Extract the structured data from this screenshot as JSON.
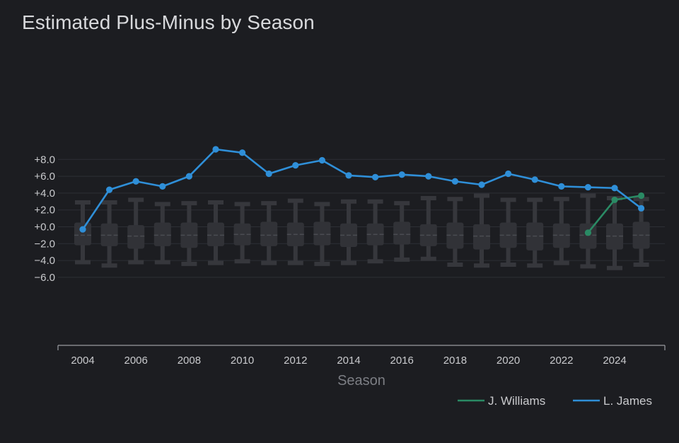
{
  "chart_data": {
    "type": "line",
    "title": "Estimated Plus-Minus by Season",
    "xlabel": "Season",
    "ylabel": "",
    "ylim": [
      -7,
      10
    ],
    "y_ticks": [
      8,
      6,
      4,
      2,
      0,
      -2,
      -4,
      -6
    ],
    "y_tick_labels": [
      "+8.0",
      "+6.0",
      "+4.0",
      "+2.0",
      "+0.0",
      "−2.0",
      "−4.0",
      "−6.0"
    ],
    "x_ticks": [
      2004,
      2006,
      2008,
      2010,
      2012,
      2014,
      2016,
      2018,
      2020,
      2022,
      2024
    ],
    "x_tick_labels": [
      "2004",
      "2006",
      "2008",
      "2010",
      "2012",
      "2014",
      "2016",
      "2018",
      "2020",
      "2022",
      "2024"
    ],
    "grid": true,
    "legend_position": "bottom-right",
    "series": [
      {
        "name": "J. Williams",
        "color": "#2a8a64",
        "x": [
          2023,
          2024,
          2025
        ],
        "y": [
          -0.7,
          3.2,
          3.7
        ]
      },
      {
        "name": "L. James",
        "color": "#2f8fd8",
        "x": [
          2004,
          2005,
          2006,
          2007,
          2008,
          2009,
          2010,
          2011,
          2012,
          2013,
          2014,
          2015,
          2016,
          2017,
          2018,
          2019,
          2020,
          2021,
          2022,
          2023,
          2024,
          2025
        ],
        "y": [
          -0.3,
          4.4,
          5.4,
          4.8,
          6.0,
          9.2,
          8.8,
          6.3,
          7.3,
          7.9,
          6.1,
          5.9,
          6.2,
          6.0,
          5.4,
          5.0,
          6.3,
          5.6,
          4.8,
          4.7,
          4.6,
          2.2
        ]
      }
    ],
    "distribution_boxes": {
      "x": [
        2004,
        2005,
        2006,
        2007,
        2008,
        2009,
        2010,
        2011,
        2012,
        2013,
        2014,
        2015,
        2016,
        2017,
        2018,
        2019,
        2020,
        2021,
        2022,
        2023,
        2024,
        2025
      ],
      "whisker_high": [
        2.9,
        2.9,
        3.2,
        2.7,
        2.8,
        2.9,
        2.7,
        2.8,
        3.1,
        2.7,
        3.0,
        3.0,
        2.8,
        3.4,
        3.3,
        3.7,
        3.2,
        3.2,
        3.3,
        3.7,
        3.4,
        3.3
      ],
      "q3": [
        0.5,
        0.4,
        0.2,
        0.5,
        0.5,
        0.5,
        0.4,
        0.6,
        0.5,
        0.6,
        0.4,
        0.4,
        0.6,
        0.3,
        0.5,
        0.3,
        0.5,
        0.5,
        0.4,
        0.4,
        0.4,
        0.6
      ],
      "median": [
        -1.0,
        -1.0,
        -1.1,
        -1.0,
        -1.0,
        -1.0,
        -0.9,
        -1.0,
        -0.9,
        -0.9,
        -1.0,
        -0.9,
        -0.9,
        -1.0,
        -1.0,
        -1.1,
        -1.0,
        -1.1,
        -1.0,
        -1.0,
        -1.1,
        -1.0
      ],
      "q1": [
        -2.2,
        -2.3,
        -2.6,
        -2.3,
        -2.5,
        -2.3,
        -2.2,
        -2.3,
        -2.3,
        -2.2,
        -2.4,
        -2.2,
        -2.1,
        -2.3,
        -2.6,
        -2.7,
        -2.5,
        -2.8,
        -2.5,
        -2.6,
        -2.7,
        -2.6
      ],
      "whisker_low": [
        -4.2,
        -4.6,
        -4.2,
        -4.2,
        -4.4,
        -4.3,
        -4.1,
        -4.3,
        -4.3,
        -4.4,
        -4.3,
        -4.1,
        -3.9,
        -3.8,
        -4.5,
        -4.6,
        -4.5,
        -4.6,
        -4.3,
        -4.7,
        -4.9,
        -4.5
      ]
    }
  }
}
